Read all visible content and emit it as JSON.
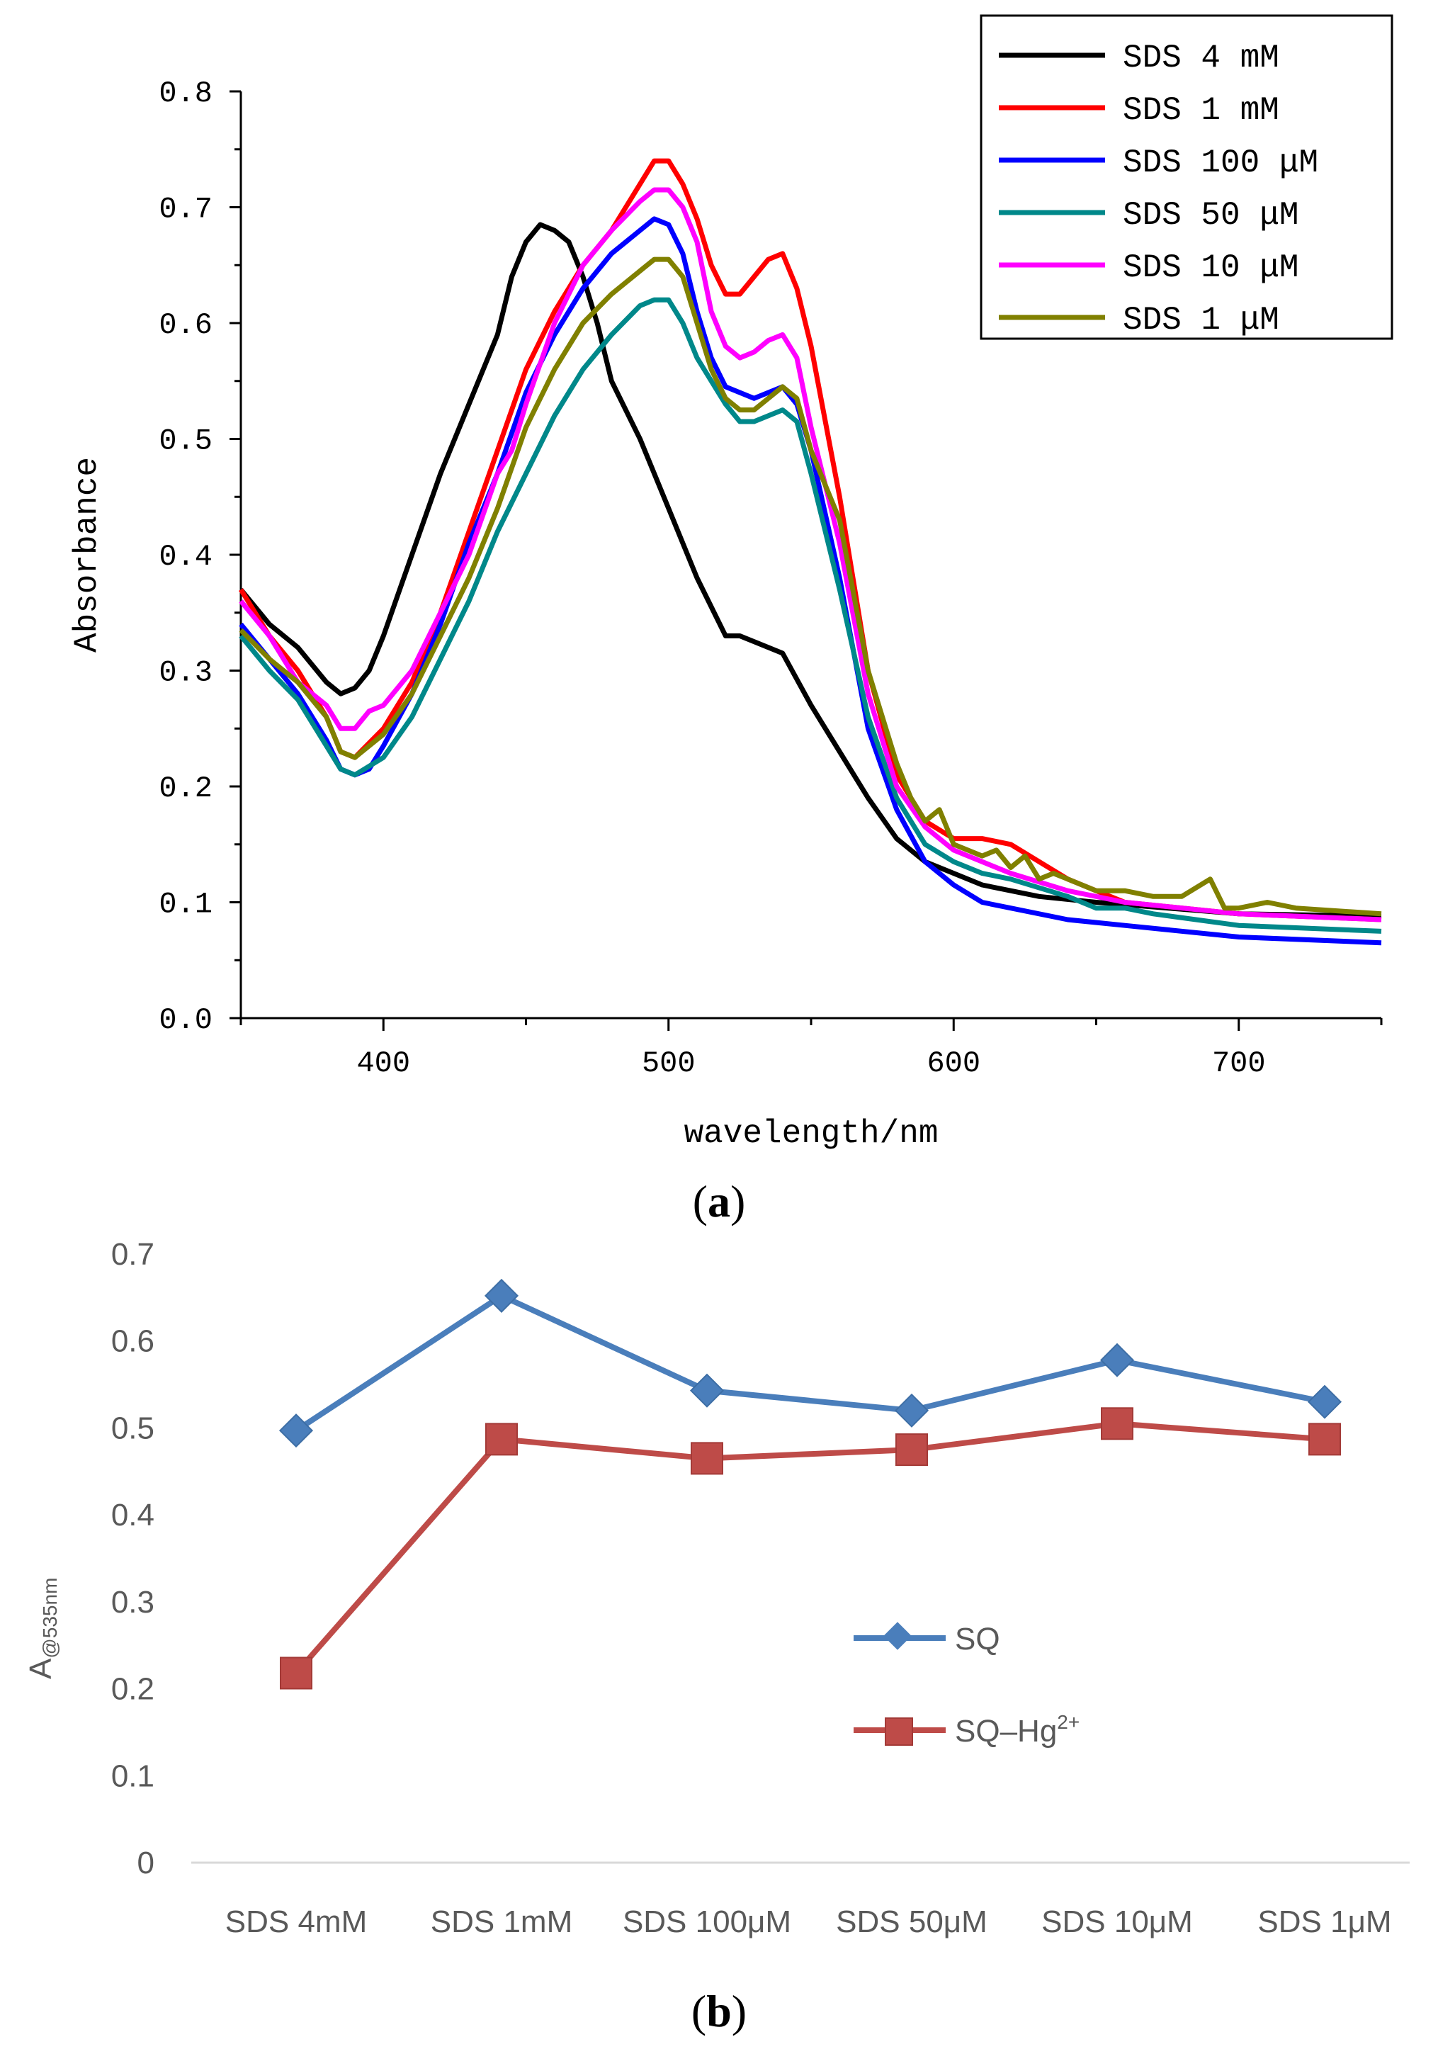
{
  "chart_data": [
    {
      "type": "line",
      "panel_label": "a",
      "xlabel": "wavelength/nm",
      "ylabel": "Absorbance",
      "xlim": [
        350,
        750
      ],
      "ylim": [
        0.0,
        0.8
      ],
      "xticks": [
        "400",
        "500",
        "600",
        "700"
      ],
      "yticks": [
        "0.0",
        "0.1",
        "0.2",
        "0.3",
        "0.4",
        "0.5",
        "0.6",
        "0.7",
        "0.8"
      ],
      "legend_position": "top-right",
      "series": [
        {
          "name": "SDS 4 mM",
          "color": "#000000",
          "points": [
            [
              350,
              0.37
            ],
            [
              360,
              0.34
            ],
            [
              370,
              0.32
            ],
            [
              380,
              0.29
            ],
            [
              385,
              0.28
            ],
            [
              390,
              0.285
            ],
            [
              395,
              0.3
            ],
            [
              400,
              0.33
            ],
            [
              410,
              0.4
            ],
            [
              420,
              0.47
            ],
            [
              430,
              0.53
            ],
            [
              440,
              0.59
            ],
            [
              445,
              0.64
            ],
            [
              450,
              0.67
            ],
            [
              455,
              0.685
            ],
            [
              460,
              0.68
            ],
            [
              465,
              0.67
            ],
            [
              470,
              0.64
            ],
            [
              475,
              0.6
            ],
            [
              480,
              0.55
            ],
            [
              490,
              0.5
            ],
            [
              500,
              0.44
            ],
            [
              510,
              0.38
            ],
            [
              520,
              0.33
            ],
            [
              525,
              0.33
            ],
            [
              530,
              0.325
            ],
            [
              540,
              0.315
            ],
            [
              550,
              0.27
            ],
            [
              560,
              0.23
            ],
            [
              570,
              0.19
            ],
            [
              580,
              0.155
            ],
            [
              590,
              0.135
            ],
            [
              600,
              0.125
            ],
            [
              610,
              0.115
            ],
            [
              620,
              0.11
            ],
            [
              630,
              0.105
            ],
            [
              650,
              0.1
            ],
            [
              700,
              0.09
            ],
            [
              750,
              0.088
            ]
          ]
        },
        {
          "name": "SDS 1 mM",
          "color": "#ff0000",
          "points": [
            [
              350,
              0.37
            ],
            [
              360,
              0.33
            ],
            [
              370,
              0.3
            ],
            [
              380,
              0.26
            ],
            [
              385,
              0.23
            ],
            [
              390,
              0.225
            ],
            [
              400,
              0.25
            ],
            [
              410,
              0.29
            ],
            [
              420,
              0.35
            ],
            [
              430,
              0.42
            ],
            [
              440,
              0.49
            ],
            [
              450,
              0.56
            ],
            [
              460,
              0.61
            ],
            [
              470,
              0.65
            ],
            [
              480,
              0.68
            ],
            [
              490,
              0.72
            ],
            [
              495,
              0.74
            ],
            [
              500,
              0.74
            ],
            [
              505,
              0.72
            ],
            [
              510,
              0.69
            ],
            [
              515,
              0.65
            ],
            [
              520,
              0.625
            ],
            [
              525,
              0.625
            ],
            [
              530,
              0.64
            ],
            [
              535,
              0.655
            ],
            [
              540,
              0.66
            ],
            [
              545,
              0.63
            ],
            [
              550,
              0.58
            ],
            [
              560,
              0.45
            ],
            [
              570,
              0.3
            ],
            [
              580,
              0.21
            ],
            [
              590,
              0.17
            ],
            [
              600,
              0.155
            ],
            [
              610,
              0.155
            ],
            [
              620,
              0.15
            ],
            [
              630,
              0.135
            ],
            [
              640,
              0.12
            ],
            [
              650,
              0.11
            ],
            [
              660,
              0.1
            ],
            [
              700,
              0.09
            ],
            [
              750,
              0.085
            ]
          ]
        },
        {
          "name": "SDS 100 μM",
          "color": "#0000ff",
          "points": [
            [
              350,
              0.34
            ],
            [
              360,
              0.31
            ],
            [
              370,
              0.28
            ],
            [
              380,
              0.24
            ],
            [
              385,
              0.215
            ],
            [
              390,
              0.21
            ],
            [
              395,
              0.215
            ],
            [
              400,
              0.235
            ],
            [
              410,
              0.28
            ],
            [
              420,
              0.34
            ],
            [
              430,
              0.41
            ],
            [
              440,
              0.47
            ],
            [
              450,
              0.54
            ],
            [
              460,
              0.59
            ],
            [
              470,
              0.63
            ],
            [
              480,
              0.66
            ],
            [
              490,
              0.68
            ],
            [
              495,
              0.69
            ],
            [
              500,
              0.685
            ],
            [
              505,
              0.66
            ],
            [
              510,
              0.61
            ],
            [
              515,
              0.57
            ],
            [
              520,
              0.545
            ],
            [
              530,
              0.535
            ],
            [
              540,
              0.545
            ],
            [
              545,
              0.53
            ],
            [
              550,
              0.49
            ],
            [
              560,
              0.38
            ],
            [
              570,
              0.25
            ],
            [
              580,
              0.18
            ],
            [
              590,
              0.135
            ],
            [
              600,
              0.115
            ],
            [
              610,
              0.1
            ],
            [
              620,
              0.095
            ],
            [
              640,
              0.085
            ],
            [
              660,
              0.08
            ],
            [
              700,
              0.07
            ],
            [
              750,
              0.065
            ]
          ]
        },
        {
          "name": "SDS 50 μM",
          "color": "#00888a",
          "points": [
            [
              350,
              0.33
            ],
            [
              360,
              0.3
            ],
            [
              370,
              0.275
            ],
            [
              380,
              0.235
            ],
            [
              385,
              0.215
            ],
            [
              390,
              0.21
            ],
            [
              400,
              0.225
            ],
            [
              410,
              0.26
            ],
            [
              420,
              0.31
            ],
            [
              430,
              0.36
            ],
            [
              440,
              0.42
            ],
            [
              450,
              0.47
            ],
            [
              460,
              0.52
            ],
            [
              470,
              0.56
            ],
            [
              480,
              0.59
            ],
            [
              490,
              0.615
            ],
            [
              495,
              0.62
            ],
            [
              500,
              0.62
            ],
            [
              505,
              0.6
            ],
            [
              510,
              0.57
            ],
            [
              520,
              0.53
            ],
            [
              525,
              0.515
            ],
            [
              530,
              0.515
            ],
            [
              540,
              0.525
            ],
            [
              545,
              0.515
            ],
            [
              550,
              0.47
            ],
            [
              560,
              0.37
            ],
            [
              570,
              0.26
            ],
            [
              580,
              0.19
            ],
            [
              590,
              0.15
            ],
            [
              600,
              0.135
            ],
            [
              610,
              0.125
            ],
            [
              620,
              0.12
            ],
            [
              640,
              0.105
            ],
            [
              650,
              0.095
            ],
            [
              660,
              0.095
            ],
            [
              670,
              0.09
            ],
            [
              700,
              0.08
            ],
            [
              750,
              0.075
            ]
          ]
        },
        {
          "name": "SDS 10 μM",
          "color": "#ff00ff",
          "points": [
            [
              350,
              0.36
            ],
            [
              360,
              0.33
            ],
            [
              370,
              0.29
            ],
            [
              380,
              0.27
            ],
            [
              385,
              0.25
            ],
            [
              390,
              0.25
            ],
            [
              395,
              0.265
            ],
            [
              400,
              0.27
            ],
            [
              410,
              0.3
            ],
            [
              420,
              0.35
            ],
            [
              430,
              0.4
            ],
            [
              440,
              0.47
            ],
            [
              445,
              0.49
            ],
            [
              450,
              0.53
            ],
            [
              460,
              0.6
            ],
            [
              470,
              0.65
            ],
            [
              480,
              0.68
            ],
            [
              490,
              0.705
            ],
            [
              495,
              0.715
            ],
            [
              500,
              0.715
            ],
            [
              505,
              0.7
            ],
            [
              510,
              0.67
            ],
            [
              515,
              0.61
            ],
            [
              520,
              0.58
            ],
            [
              525,
              0.57
            ],
            [
              530,
              0.575
            ],
            [
              535,
              0.585
            ],
            [
              540,
              0.59
            ],
            [
              545,
              0.57
            ],
            [
              550,
              0.51
            ],
            [
              560,
              0.41
            ],
            [
              570,
              0.28
            ],
            [
              580,
              0.2
            ],
            [
              590,
              0.165
            ],
            [
              600,
              0.145
            ],
            [
              610,
              0.135
            ],
            [
              620,
              0.125
            ],
            [
              640,
              0.11
            ],
            [
              660,
              0.1
            ],
            [
              700,
              0.09
            ],
            [
              750,
              0.085
            ]
          ]
        },
        {
          "name": "SDS 1 μM",
          "color": "#808000",
          "points": [
            [
              350,
              0.335
            ],
            [
              360,
              0.31
            ],
            [
              370,
              0.29
            ],
            [
              380,
              0.26
            ],
            [
              385,
              0.23
            ],
            [
              390,
              0.225
            ],
            [
              400,
              0.245
            ],
            [
              410,
              0.28
            ],
            [
              420,
              0.33
            ],
            [
              430,
              0.38
            ],
            [
              440,
              0.44
            ],
            [
              450,
              0.51
            ],
            [
              460,
              0.56
            ],
            [
              470,
              0.6
            ],
            [
              480,
              0.625
            ],
            [
              490,
              0.645
            ],
            [
              495,
              0.655
            ],
            [
              500,
              0.655
            ],
            [
              505,
              0.64
            ],
            [
              510,
              0.6
            ],
            [
              515,
              0.56
            ],
            [
              520,
              0.535
            ],
            [
              525,
              0.525
            ],
            [
              530,
              0.525
            ],
            [
              535,
              0.535
            ],
            [
              540,
              0.545
            ],
            [
              545,
              0.535
            ],
            [
              550,
              0.49
            ],
            [
              560,
              0.43
            ],
            [
              570,
              0.3
            ],
            [
              575,
              0.26
            ],
            [
              580,
              0.22
            ],
            [
              585,
              0.19
            ],
            [
              590,
              0.17
            ],
            [
              595,
              0.18
            ],
            [
              600,
              0.15
            ],
            [
              610,
              0.14
            ],
            [
              615,
              0.145
            ],
            [
              620,
              0.13
            ],
            [
              625,
              0.14
            ],
            [
              630,
              0.12
            ],
            [
              635,
              0.125
            ],
            [
              640,
              0.12
            ],
            [
              645,
              0.115
            ],
            [
              650,
              0.11
            ],
            [
              660,
              0.11
            ],
            [
              670,
              0.105
            ],
            [
              680,
              0.105
            ],
            [
              690,
              0.12
            ],
            [
              695,
              0.095
            ],
            [
              700,
              0.095
            ],
            [
              710,
              0.1
            ],
            [
              720,
              0.095
            ],
            [
              750,
              0.09
            ]
          ]
        }
      ]
    },
    {
      "type": "line",
      "panel_label": "b",
      "xlabel": "",
      "ylabel_main": "A",
      "ylabel_sub": "@535nm",
      "ylim": [
        0,
        0.7
      ],
      "yticks": [
        "0",
        "0.1",
        "0.2",
        "0.3",
        "0.4",
        "0.5",
        "0.6",
        "0.7"
      ],
      "categories": [
        "SDS 4mM",
        "SDS 1mM",
        "SDS 100μM",
        "SDS 50μM",
        "SDS 10μM",
        "SDS 1μM"
      ],
      "legend_position": "center-right",
      "series": [
        {
          "name": "SQ",
          "color": "#4a7ebb",
          "marker": "diamond",
          "values": [
            0.497,
            0.652,
            0.543,
            0.52,
            0.578,
            0.53
          ]
        },
        {
          "name_main": "SQ–Hg",
          "name_sup": "2+",
          "color": "#be4b48",
          "marker": "square",
          "values": [
            0.218,
            0.487,
            0.465,
            0.475,
            0.505,
            0.487
          ]
        }
      ]
    }
  ]
}
